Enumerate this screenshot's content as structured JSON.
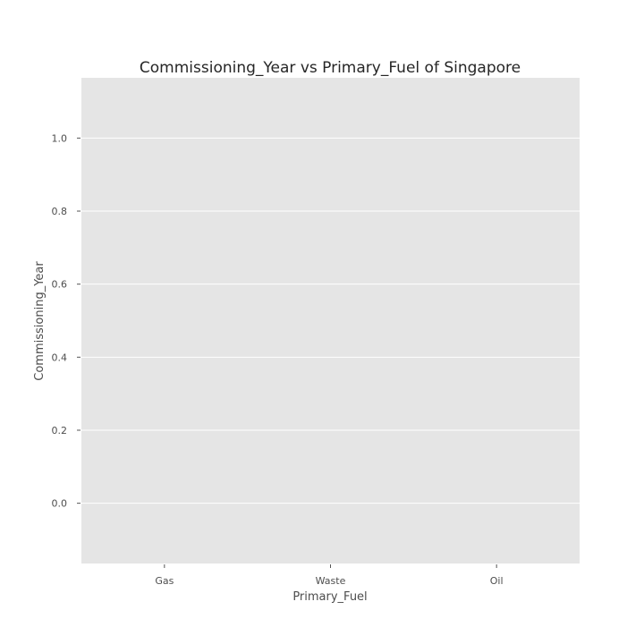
{
  "chart_data": {
    "type": "scatter",
    "title": "Commissioning_Year vs  Primary_Fuel of Singapore",
    "xlabel": "Primary_Fuel",
    "ylabel": "Commissioning_Year",
    "categories": [
      "Gas",
      "Waste",
      "Oil"
    ],
    "ylim": [
      -0.165,
      1.165
    ],
    "yticks": [
      0.0,
      0.2,
      0.4,
      0.6,
      0.8,
      1.0
    ],
    "ytick_labels": [
      "0.0",
      "0.2",
      "0.4",
      "0.6",
      "0.8",
      "1.0"
    ],
    "series": [],
    "grid": true,
    "background_color": "#e5e5e5",
    "grid_color": "#ffffff"
  }
}
